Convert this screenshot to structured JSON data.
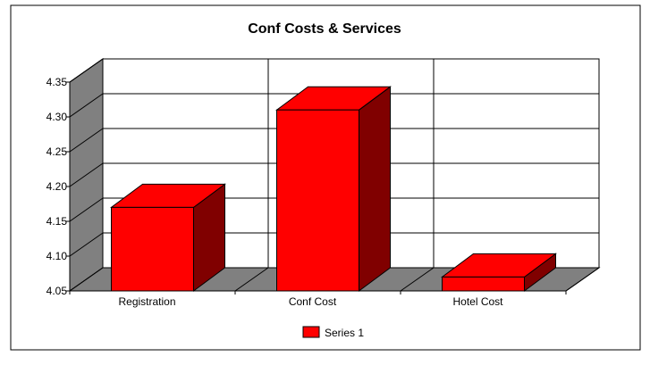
{
  "chart_data": {
    "type": "bar",
    "title": "Conf Costs & Services",
    "categories": [
      "Registration",
      "Conf Cost",
      "Hotel Cost"
    ],
    "series": [
      {
        "name": "Series 1",
        "values": [
          4.17,
          4.31,
          4.07
        ]
      }
    ],
    "ylim": [
      4.05,
      4.35
    ],
    "yticks": [
      "4.35",
      "4.30",
      "4.25",
      "4.20",
      "4.15",
      "4.10",
      "4.05"
    ],
    "grid": true,
    "legend": "bottom",
    "colors": {
      "bar_front": "#ff0000",
      "bar_top": "#ff0000",
      "bar_side": "#800000",
      "wall": "#ffffff",
      "wall_side": "#808080",
      "floor": "#808080"
    }
  }
}
